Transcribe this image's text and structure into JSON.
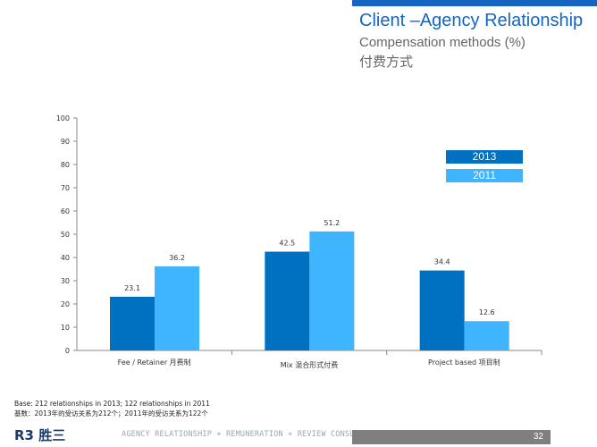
{
  "header": {
    "title": "Client –Agency Relationship",
    "subtitle": "Compensation methods (%)",
    "subtitle_cn": "付费方式"
  },
  "colors": {
    "accent": "#1565c0",
    "series_2013": "#0070c0",
    "series_2011": "#3fb5ff",
    "page_box": "#7f7f7f"
  },
  "legend": [
    {
      "label": "2013",
      "color": "#0070c0"
    },
    {
      "label": "2011",
      "color": "#3fb5ff"
    }
  ],
  "chart_data": {
    "type": "bar",
    "categories": [
      "Fee / Retainer  月费制",
      "Mix  混合形式付费",
      "Project  based  项目制"
    ],
    "series": [
      {
        "name": "2013",
        "values": [
          23.1,
          42.5,
          34.4
        ]
      },
      {
        "name": "2011",
        "values": [
          36.2,
          51.2,
          12.6
        ]
      }
    ],
    "ylim": [
      0,
      100
    ],
    "yticks": [
      0,
      10,
      20,
      30,
      40,
      50,
      60,
      70,
      80,
      90,
      100
    ],
    "grid": false,
    "legend_position": "top-right"
  },
  "footer": {
    "base_line1": "Base: 212  relationships  in 2013;  122  relationships  in 2011",
    "base_line2": "基数：2013年的受访关系为212个；2011年的受访关系为122个",
    "logo": "R3 胜三",
    "tagline": "AGENCY RELATIONSHIP + REMUNERATION + REVIEW CONSULTANTS",
    "page_number": "32"
  }
}
